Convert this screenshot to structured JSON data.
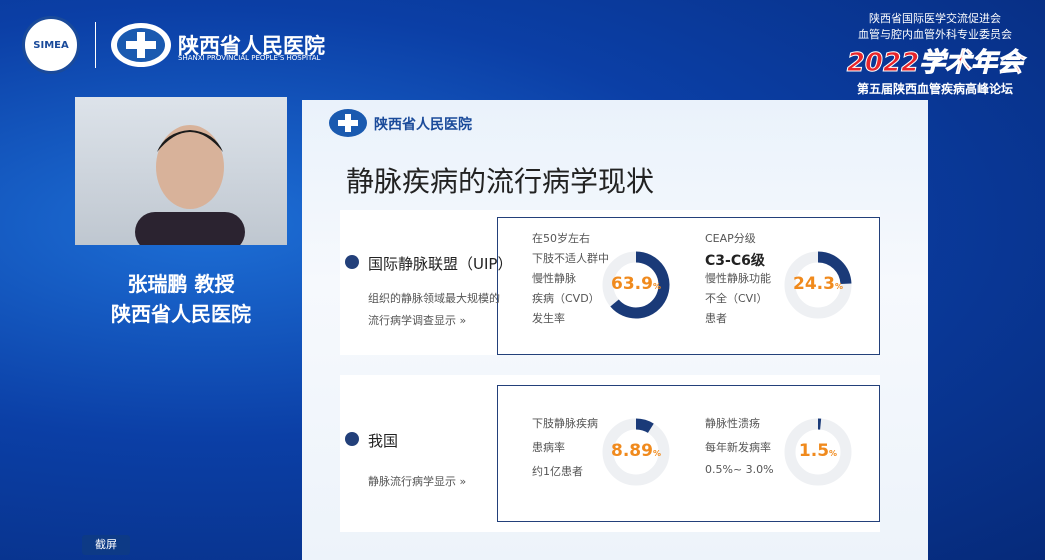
{
  "header": {
    "org_badge": "SIMEA",
    "hospital": "陕西省人民医院",
    "hospital_en": "SHANXI PROVINCIAL PEOPLE'S HOSPITAL"
  },
  "conference": {
    "line1": "陕西省国际医学交流促进会",
    "line2": "血管与腔内血管外科专业委员会",
    "year_title": "2022学术年会",
    "forum": "第五届陕西血管疾病高峰论坛"
  },
  "speaker": {
    "name": "张瑞鹏  教授",
    "affiliation": "陕西省人民医院"
  },
  "screenshot_button": "截屏",
  "slide": {
    "hospital": "陕西省人民医院",
    "title": "静脉疾病的流行病学现状",
    "sections": [
      {
        "title": "国际静脉联盟（UIP）",
        "desc": [
          "组织的静脉领域最大规模的",
          "流行病学调查显示 »"
        ],
        "stats": [
          {
            "lines": [
              "在50岁左右",
              "下肢不适人群中",
              "慢性静脉",
              "疾病（CVD）",
              "发生率"
            ],
            "value": 63.9,
            "unit": "%"
          },
          {
            "lines": [
              "CEAP分级",
              "C3-C6级",
              "慢性静脉功能",
              "不全（CVI）",
              "患者"
            ],
            "value": 24.3,
            "unit": "%"
          }
        ]
      },
      {
        "title": "我国",
        "desc": [
          "静脉流行病学显示 »"
        ],
        "stats": [
          {
            "lines": [
              "下肢静脉疾病",
              "患病率",
              "约1亿患者"
            ],
            "value": 8.89,
            "unit": "%"
          },
          {
            "lines": [
              "静脉性溃疡",
              "每年新发病率",
              "0.5%~ 3.0%"
            ],
            "value": 1.5,
            "unit": "%"
          }
        ]
      }
    ]
  }
}
